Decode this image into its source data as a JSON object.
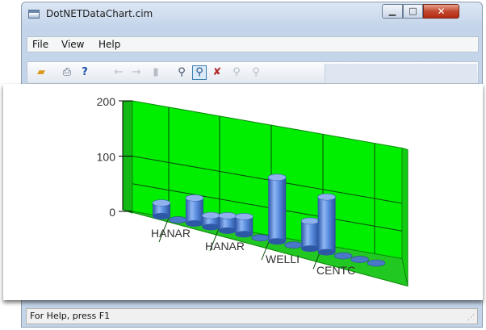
{
  "window": {
    "title": "DotNETDataChart.cim"
  },
  "menu": {
    "items": [
      {
        "label": "File"
      },
      {
        "label": "View"
      },
      {
        "label": "Help"
      }
    ]
  },
  "toolbar": {
    "icons": [
      "open-icon",
      "print-icon",
      "whats-this-help-icon",
      "back-arrow-icon",
      "forward-arrow-icon",
      "bar-chart-icon",
      "zoom-icon",
      "zoom-window-icon",
      "zoom-reset-icon",
      "zoom-in-icon",
      "zoom-out-icon"
    ]
  },
  "status": {
    "text": "For Help, press F1"
  },
  "colors": {
    "wall": "#00ee00",
    "floor": "#22c822",
    "bar": "#5b8ee0",
    "titlebar": "#c4d5ea",
    "close_button": "#c2482f"
  },
  "chart_data": {
    "type": "bar",
    "categories": [
      "HANAR",
      "",
      "HANAR",
      "",
      "",
      "",
      "",
      "",
      "WELLI",
      "",
      "",
      "",
      "CENTC",
      ""
    ],
    "x_labels": [
      "HANAR",
      "HANAR",
      "WELLI",
      "CENTC"
    ],
    "values": [
      24,
      0,
      46,
      21,
      27,
      32,
      0,
      116,
      0,
      50,
      100,
      0,
      0,
      0
    ],
    "yticks": [
      "0",
      "100",
      "200"
    ],
    "ylim": [
      0,
      200
    ],
    "grid": true,
    "title": "",
    "xlabel": "",
    "ylabel": ""
  }
}
